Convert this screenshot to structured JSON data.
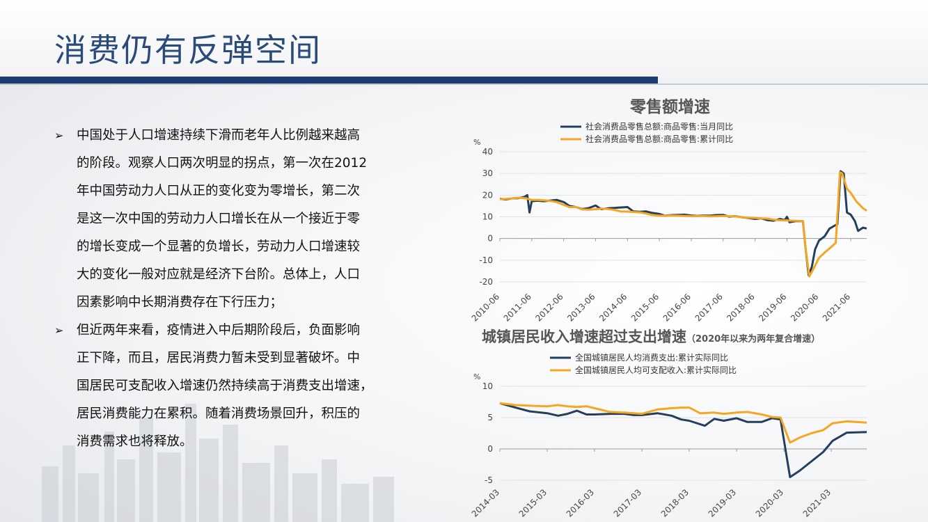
{
  "page": {
    "title": "消费仍有反弹空间",
    "bullet_symbol": "➢",
    "bullets": [
      "中国处于人口增速持续下滑而老年人比例越来越高的阶段。观察人口两次明显的拐点，第一次在2012年中国劳动力人口从正的变化变为零增长，第二次是这一次中国的劳动力人口增长在从一个接近于零的增长变成一个显著的负增长，劳动力人口增速较大的变化一般对应就是经济下台阶。总体上，人口因素影响中长期消费存在下行压力；",
      "但近两年来看，疫情进入中后期阶段后，负面影响正下降，而且，居民消费力暂未受到显著破坏。中国居民可支配收入增速仍然持续高于消费支出增速，居民消费能力在累积。随着消费场景回升，积压的消费需求也将释放。"
    ],
    "bullet_lines": [
      [
        "中国处于人口增速持续下滑而老年人比例越来越高",
        "的阶段。观察人口两次明显的拐点，第一次在2012",
        "年中国劳动力人口从正的变化变为零增长，第二次",
        "是这一次中国的劳动力人口增长在从一个接近于零",
        "的增长变成一个显著的负增长，劳动力人口增速较",
        "大的变化一般对应就是经济下台阶。总体上，人口",
        "因素影响中长期消费存在下行压力；"
      ],
      [
        "但近两年来看，疫情进入中后期阶段后，负面影响",
        "正下降，而且，居民消费力暂未受到显著破坏。中",
        "国居民可支配收入增速仍然持续高于消费支出增速，",
        "居民消费能力在累积。随着消费场景回升，积压的",
        "消费需求也将释放。"
      ]
    ]
  },
  "colors": {
    "title": "#2a4a78",
    "bar": "#1b3d72",
    "series_dark": "#243f5c",
    "series_orange": "#f5a623"
  },
  "chart_data": [
    {
      "type": "line",
      "title": "零售额增速",
      "ylabel": "%",
      "ylim": [
        -20,
        40
      ],
      "yticks": [
        40,
        30,
        20,
        10,
        0,
        -10,
        -20
      ],
      "xlim": [
        2010.42,
        2021.92
      ],
      "xticks": [
        {
          "label": "2010-06",
          "x": 2010.42
        },
        {
          "label": "2011-06",
          "x": 2011.42
        },
        {
          "label": "2012-06",
          "x": 2012.42
        },
        {
          "label": "2013-06",
          "x": 2013.42
        },
        {
          "label": "2014-06",
          "x": 2014.42
        },
        {
          "label": "2015-06",
          "x": 2015.42
        },
        {
          "label": "2016-06",
          "x": 2016.42
        },
        {
          "label": "2017-06",
          "x": 2017.42
        },
        {
          "label": "2018-06",
          "x": 2018.42
        },
        {
          "label": "2019-06",
          "x": 2019.42
        },
        {
          "label": "2020-06",
          "x": 2020.42
        },
        {
          "label": "2021-06",
          "x": 2021.42
        }
      ],
      "legend_position": "top",
      "series": [
        {
          "name": "社会消费品零售总额:商品零售:当月同比",
          "color": "#243f5c",
          "points": [
            [
              2010.42,
              18.3
            ],
            [
              2010.6,
              18
            ],
            [
              2010.8,
              18.5
            ],
            [
              2011.0,
              18.6
            ],
            [
              2011.2,
              19.2
            ],
            [
              2011.28,
              20
            ],
            [
              2011.35,
              12
            ],
            [
              2011.42,
              17.2
            ],
            [
              2011.6,
              17.4
            ],
            [
              2011.8,
              17.2
            ],
            [
              2012.0,
              17.5
            ],
            [
              2012.2,
              17.8
            ],
            [
              2012.42,
              16.8
            ],
            [
              2012.6,
              15
            ],
            [
              2012.8,
              14.5
            ],
            [
              2013.0,
              13.6
            ],
            [
              2013.2,
              14
            ],
            [
              2013.42,
              15.2
            ],
            [
              2013.6,
              13.5
            ],
            [
              2013.8,
              13.9
            ],
            [
              2014.0,
              14.1
            ],
            [
              2014.2,
              14.3
            ],
            [
              2014.42,
              14.5
            ],
            [
              2014.6,
              12.5
            ],
            [
              2014.8,
              12.3
            ],
            [
              2015.0,
              12.5
            ],
            [
              2015.2,
              11.8
            ],
            [
              2015.42,
              11.3
            ],
            [
              2015.6,
              10.5
            ],
            [
              2015.8,
              10.8
            ],
            [
              2016.0,
              10.9
            ],
            [
              2016.2,
              11
            ],
            [
              2016.42,
              10.6
            ],
            [
              2016.6,
              10.4
            ],
            [
              2016.8,
              10.6
            ],
            [
              2017.0,
              10.5
            ],
            [
              2017.2,
              10.8
            ],
            [
              2017.42,
              10.9
            ],
            [
              2017.6,
              10.1
            ],
            [
              2017.8,
              10.3
            ],
            [
              2018.0,
              9.8
            ],
            [
              2018.2,
              9.5
            ],
            [
              2018.42,
              9
            ],
            [
              2018.6,
              9.3
            ],
            [
              2018.8,
              8.5
            ],
            [
              2019.0,
              8.2
            ],
            [
              2019.2,
              9
            ],
            [
              2019.35,
              8.5
            ],
            [
              2019.42,
              10
            ],
            [
              2019.5,
              7.5
            ],
            [
              2019.7,
              8
            ],
            [
              2019.92,
              8
            ],
            [
              2020.0,
              -4
            ],
            [
              2020.1,
              -17
            ],
            [
              2020.2,
              -13
            ],
            [
              2020.3,
              -5
            ],
            [
              2020.42,
              -1
            ],
            [
              2020.6,
              1
            ],
            [
              2020.75,
              4.5
            ],
            [
              2020.92,
              6
            ],
            [
              2021.0,
              6.5
            ],
            [
              2021.1,
              31
            ],
            [
              2021.2,
              30
            ],
            [
              2021.3,
              12
            ],
            [
              2021.42,
              11
            ],
            [
              2021.55,
              8
            ],
            [
              2021.65,
              3.5
            ],
            [
              2021.8,
              5
            ],
            [
              2021.92,
              4.6
            ]
          ]
        },
        {
          "name": "社会消费品零售总额:商品零售:累计同比",
          "color": "#f5a623",
          "points": [
            [
              2010.42,
              18.1
            ],
            [
              2010.6,
              18.2
            ],
            [
              2010.8,
              18.5
            ],
            [
              2011.0,
              18.8
            ],
            [
              2011.2,
              18.6
            ],
            [
              2011.42,
              17.8
            ],
            [
              2011.6,
              17.8
            ],
            [
              2011.8,
              17.6
            ],
            [
              2012.0,
              17.3
            ],
            [
              2012.2,
              16.8
            ],
            [
              2012.42,
              15.5
            ],
            [
              2012.6,
              14.5
            ],
            [
              2012.8,
              14.5
            ],
            [
              2013.0,
              13.4
            ],
            [
              2013.2,
              13.3
            ],
            [
              2013.42,
              13.5
            ],
            [
              2013.6,
              13.8
            ],
            [
              2013.8,
              13.6
            ],
            [
              2014.0,
              13.2
            ],
            [
              2014.2,
              12.5
            ],
            [
              2014.42,
              12.4
            ],
            [
              2014.6,
              12.2
            ],
            [
              2014.8,
              12.1
            ],
            [
              2015.0,
              11.5
            ],
            [
              2015.2,
              10.8
            ],
            [
              2015.42,
              10.5
            ],
            [
              2015.6,
              10.5
            ],
            [
              2015.8,
              10.6
            ],
            [
              2016.0,
              10.5
            ],
            [
              2016.2,
              10.4
            ],
            [
              2016.42,
              10.3
            ],
            [
              2016.6,
              10.3
            ],
            [
              2016.8,
              10.4
            ],
            [
              2017.0,
              10.2
            ],
            [
              2017.2,
              10.3
            ],
            [
              2017.42,
              10.4
            ],
            [
              2017.6,
              10.3
            ],
            [
              2017.8,
              10.2
            ],
            [
              2018.0,
              9.8
            ],
            [
              2018.2,
              9.6
            ],
            [
              2018.42,
              9.5
            ],
            [
              2018.6,
              9.3
            ],
            [
              2018.8,
              9.2
            ],
            [
              2019.0,
              8.7
            ],
            [
              2019.2,
              8.4
            ],
            [
              2019.42,
              8.3
            ],
            [
              2019.6,
              8.2
            ],
            [
              2019.8,
              8.1
            ],
            [
              2019.92,
              8
            ],
            [
              2020.0,
              -4
            ],
            [
              2020.12,
              -17.5
            ],
            [
              2020.25,
              -14
            ],
            [
              2020.42,
              -9
            ],
            [
              2020.6,
              -6.5
            ],
            [
              2020.8,
              -4
            ],
            [
              2020.95,
              -2
            ],
            [
              2021.08,
              30.5
            ],
            [
              2021.15,
              30
            ],
            [
              2021.3,
              23
            ],
            [
              2021.42,
              21
            ],
            [
              2021.6,
              17
            ],
            [
              2021.8,
              14
            ],
            [
              2021.92,
              12.8
            ]
          ]
        }
      ]
    },
    {
      "type": "line",
      "title": "城镇居民收入增速超过支出增速",
      "subtitle": "（2020年以来为两年复合增速）",
      "ylabel": "%",
      "ylim": [
        -5,
        10
      ],
      "yticks": [
        10,
        5,
        0,
        -5
      ],
      "xlim": [
        2014.17,
        2021.92
      ],
      "xticks": [
        {
          "label": "2014-03",
          "x": 2014.17
        },
        {
          "label": "2015-03",
          "x": 2015.17
        },
        {
          "label": "2016-03",
          "x": 2016.17
        },
        {
          "label": "2017-03",
          "x": 2017.17
        },
        {
          "label": "2018-03",
          "x": 2018.17
        },
        {
          "label": "2019-03",
          "x": 2019.17
        },
        {
          "label": "2020-03",
          "x": 2020.17
        },
        {
          "label": "2021-03",
          "x": 2021.17
        }
      ],
      "legend_position": "top",
      "series": [
        {
          "name": "全国城镇居民人均消费支出:累计实际同比",
          "color": "#243f5c",
          "points": [
            [
              2014.17,
              7.3
            ],
            [
              2014.5,
              6.6
            ],
            [
              2014.8,
              6.0
            ],
            [
              2015.17,
              5.7
            ],
            [
              2015.4,
              5.3
            ],
            [
              2015.6,
              5.6
            ],
            [
              2015.8,
              6.1
            ],
            [
              2016.0,
              5.5
            ],
            [
              2016.17,
              5.5
            ],
            [
              2016.5,
              5.6
            ],
            [
              2016.8,
              5.6
            ],
            [
              2017.0,
              5.4
            ],
            [
              2017.17,
              5.4
            ],
            [
              2017.5,
              5.7
            ],
            [
              2017.8,
              5.3
            ],
            [
              2018.0,
              4.7
            ],
            [
              2018.17,
              4.5
            ],
            [
              2018.5,
              3.7
            ],
            [
              2018.7,
              4.8
            ],
            [
              2018.9,
              4.5
            ],
            [
              2019.17,
              4.9
            ],
            [
              2019.4,
              4.3
            ],
            [
              2019.7,
              4.3
            ],
            [
              2019.92,
              4.9
            ],
            [
              2020.1,
              4.7
            ],
            [
              2020.3,
              -4.5
            ],
            [
              2020.5,
              -3.5
            ],
            [
              2020.75,
              -2
            ],
            [
              2021.0,
              -0.5
            ],
            [
              2021.2,
              1.3
            ],
            [
              2021.5,
              2.6
            ],
            [
              2021.92,
              2.7
            ]
          ]
        },
        {
          "name": "全国城镇居民人均可支配收入:累计实际同比",
          "color": "#f5a623",
          "points": [
            [
              2014.17,
              7.3
            ],
            [
              2014.5,
              7.0
            ],
            [
              2014.8,
              6.9
            ],
            [
              2015.17,
              6.8
            ],
            [
              2015.4,
              7.0
            ],
            [
              2015.6,
              6.8
            ],
            [
              2015.8,
              6.7
            ],
            [
              2016.0,
              6.8
            ],
            [
              2016.17,
              6.5
            ],
            [
              2016.5,
              5.9
            ],
            [
              2016.8,
              5.8
            ],
            [
              2017.0,
              5.7
            ],
            [
              2017.17,
              5.6
            ],
            [
              2017.5,
              6.3
            ],
            [
              2017.8,
              6.5
            ],
            [
              2018.0,
              6.6
            ],
            [
              2018.17,
              6.6
            ],
            [
              2018.4,
              5.7
            ],
            [
              2018.7,
              5.8
            ],
            [
              2018.9,
              5.6
            ],
            [
              2019.17,
              5.8
            ],
            [
              2019.4,
              5.9
            ],
            [
              2019.7,
              5.5
            ],
            [
              2019.92,
              5.1
            ],
            [
              2020.1,
              5.0
            ],
            [
              2020.3,
              1.0
            ],
            [
              2020.5,
              1.8
            ],
            [
              2020.75,
              2.5
            ],
            [
              2021.0,
              3.0
            ],
            [
              2021.2,
              4.1
            ],
            [
              2021.5,
              4.4
            ],
            [
              2021.92,
              4.2
            ]
          ]
        }
      ]
    }
  ]
}
